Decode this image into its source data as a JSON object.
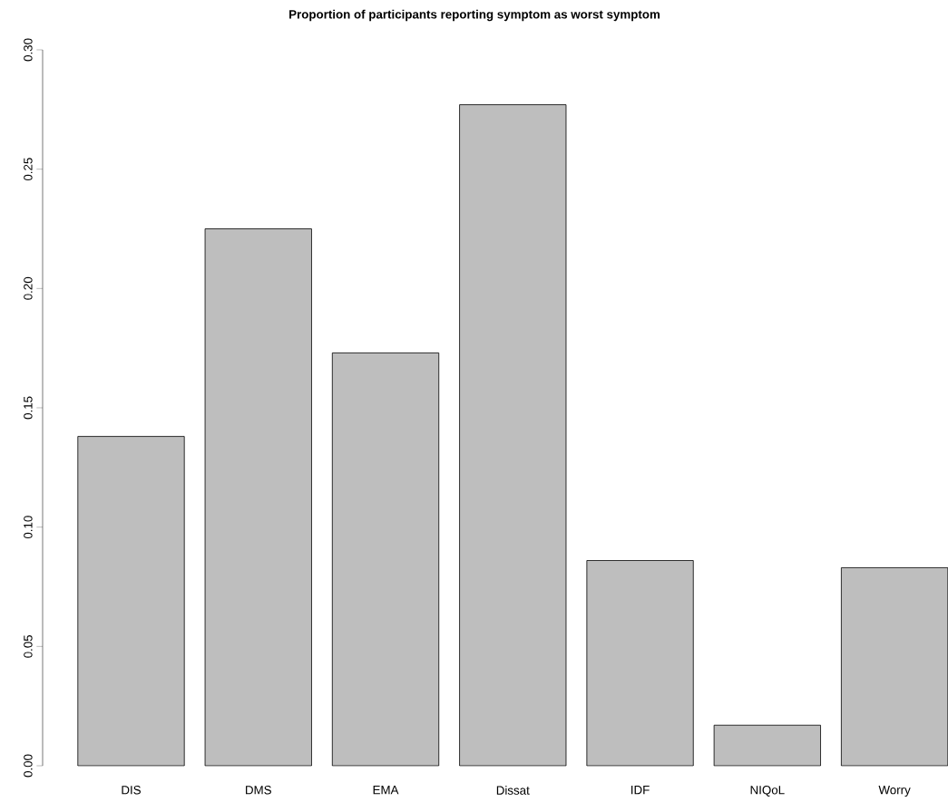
{
  "chart_data": {
    "type": "bar",
    "title": "Proportion of participants reporting symptom as worst symptom",
    "categories": [
      "DIS",
      "DMS",
      "EMA",
      "Dissat",
      "IDF",
      "NIQoL",
      "Worry"
    ],
    "values": [
      0.138,
      0.225,
      0.173,
      0.277,
      0.086,
      0.017,
      0.083
    ],
    "color": "#bebebe",
    "ylim": [
      0,
      0.3
    ],
    "yticks": [
      {
        "value": 0,
        "label": "0.00"
      },
      {
        "value": 0.05,
        "label": "0.05"
      },
      {
        "value": 0.1,
        "label": "0.10"
      },
      {
        "value": 0.15,
        "label": "0.15"
      },
      {
        "value": 0.2,
        "label": "0.20"
      },
      {
        "value": 0.25,
        "label": "0.25"
      },
      {
        "value": 0.3,
        "label": "0.30"
      }
    ],
    "grid": false
  }
}
